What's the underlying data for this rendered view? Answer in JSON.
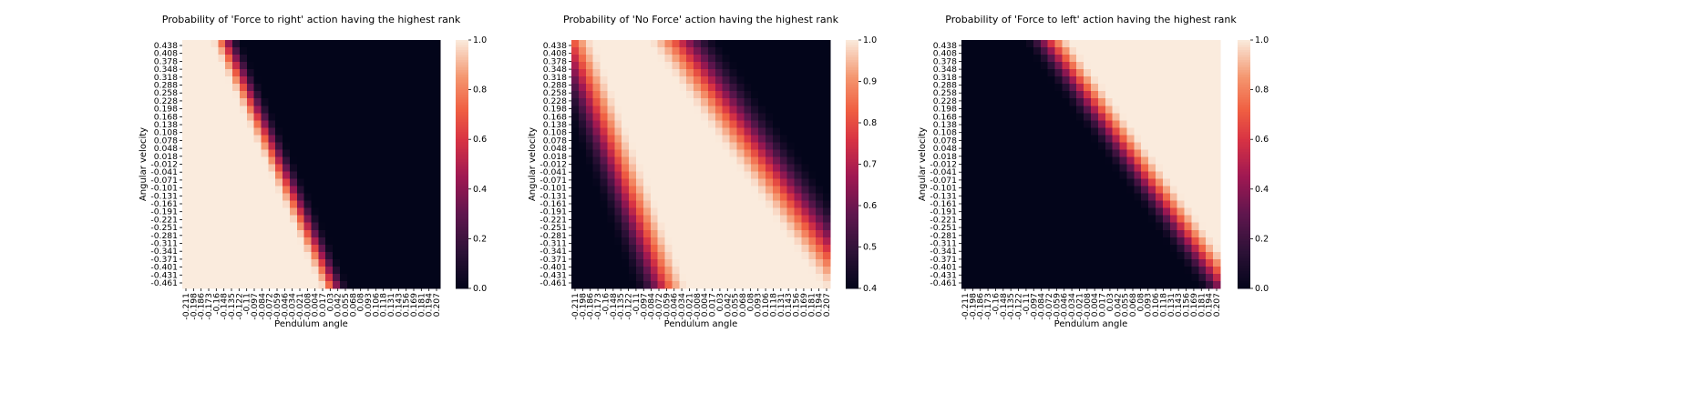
{
  "chart_data": [
    {
      "type": "heatmap",
      "title": "Probability of 'Force to right' action having the highest rank",
      "xlabel": "Pendulum angle",
      "ylabel": "Angular velocity",
      "colorbar": {
        "range": [
          0,
          1
        ],
        "ticks": [
          "0.0",
          "0.2",
          "0.4",
          "0.6",
          "0.8",
          "1.0"
        ]
      },
      "pattern": {
        "boundary_top": -0.14,
        "boundary_bottom": 0.04,
        "transition_width": 0.05,
        "high_side": "left"
      }
    },
    {
      "type": "heatmap",
      "title": "Probability of 'No Force' action having the highest rank",
      "xlabel": "Pendulum angle",
      "ylabel": "Angular velocity",
      "colorbar": {
        "range": [
          0.4,
          1
        ],
        "ticks": [
          "0.4",
          "0.5",
          "0.6",
          "0.7",
          "0.8",
          "0.9",
          "1.0"
        ]
      },
      "pattern": {
        "low_boundary_top": -0.175,
        "low_boundary_bottom": -0.02,
        "high_boundary_top": -0.09,
        "high_boundary_bottom": 0.2,
        "low_min": 0.4,
        "high_min": 0.4
      }
    },
    {
      "type": "heatmap",
      "title": "Probability of 'Force to left' action having the highest rank",
      "xlabel": "Pendulum angle",
      "ylabel": "Angular velocity",
      "colorbar": {
        "range": [
          0,
          1
        ],
        "ticks": [
          "0.0",
          "0.2",
          "0.4",
          "0.6",
          "0.8",
          "1.0"
        ]
      },
      "pattern": {
        "boundary_top": -0.09,
        "boundary_bottom": 0.2,
        "transition_width": 0.08,
        "high_side": "right"
      }
    }
  ],
  "x_ticks": [
    "-0.211",
    "-0.198",
    "-0.186",
    "-0.173",
    "-0.16",
    "-0.148",
    "-0.135",
    "-0.122",
    "-0.11",
    "-0.097",
    "-0.084",
    "-0.072",
    "-0.059",
    "-0.046",
    "-0.034",
    "-0.021",
    "-0.008",
    "0.004",
    "0.017",
    "0.03",
    "0.042",
    "0.055",
    "0.068",
    "0.08",
    "0.093",
    "0.106",
    "0.118",
    "0.131",
    "0.143",
    "0.156",
    "0.169",
    "0.181",
    "0.194",
    "0.207"
  ],
  "y_ticks": [
    "0.438",
    "0.408",
    "0.378",
    "0.348",
    "0.318",
    "0.288",
    "0.258",
    "0.228",
    "0.198",
    "0.168",
    "0.138",
    "0.108",
    "0.078",
    "0.048",
    "0.018",
    "-0.012",
    "-0.041",
    "-0.071",
    "-0.101",
    "-0.131",
    "-0.161",
    "-0.191",
    "-0.221",
    "-0.251",
    "-0.281",
    "-0.311",
    "-0.341",
    "-0.371",
    "-0.401",
    "-0.431",
    "-0.461"
  ],
  "colormap": "rocket"
}
